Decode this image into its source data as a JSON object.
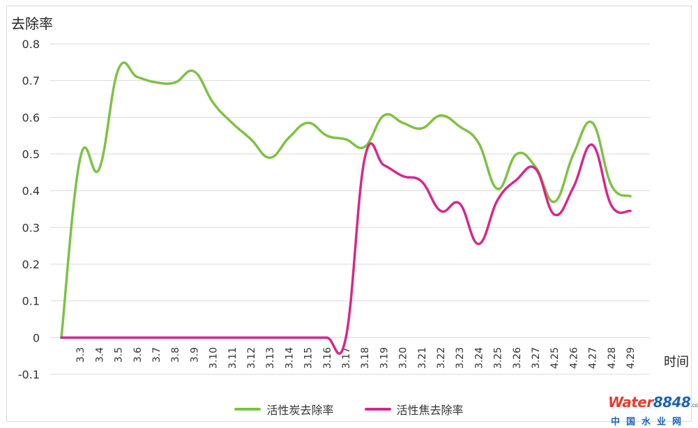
{
  "chart_data": {
    "type": "line",
    "title": "",
    "ylabel": "去除率",
    "xlabel": "时间",
    "ylim": [
      -0.1,
      0.8
    ],
    "yticks": [
      "0.8",
      "0.7",
      "0.6",
      "0.5",
      "0.4",
      "0.3",
      "0.2",
      "0.1",
      "0",
      "-0.1"
    ],
    "categories": [
      "",
      "3.3",
      "3.4",
      "3.5",
      "3.6",
      "3.7",
      "3.8",
      "3.9",
      "3.10",
      "3.11",
      "3.12",
      "3.13",
      "3.14",
      "3.15",
      "3.16",
      "3.17",
      "3.18",
      "3.19",
      "3.20",
      "3.21",
      "3.22",
      "3.23",
      "3.24",
      "3.25",
      "3.26",
      "3.27",
      "4.25",
      "4.26",
      "4.27",
      "4.28",
      "4.29"
    ],
    "grid": true,
    "legend_position": "bottom",
    "series": [
      {
        "name": "活性炭去除率",
        "color": "#7dc242",
        "values": [
          0,
          0.49,
          0.46,
          0.73,
          0.71,
          0.695,
          0.695,
          0.725,
          0.64,
          0.585,
          0.54,
          0.49,
          0.545,
          0.585,
          0.55,
          0.54,
          0.52,
          0.605,
          0.585,
          0.57,
          0.605,
          0.575,
          0.53,
          0.405,
          0.5,
          0.465,
          0.37,
          0.5,
          0.585,
          0.415,
          0.385
        ]
      },
      {
        "name": "活性焦去除率",
        "color": "#d6288a",
        "values": [
          0,
          0,
          0,
          0,
          0,
          0,
          0,
          0,
          0,
          0,
          0,
          0,
          0,
          0,
          0,
          0,
          0.49,
          0.47,
          0.44,
          0.425,
          0.345,
          0.365,
          0.255,
          0.375,
          0.43,
          0.46,
          0.335,
          0.41,
          0.525,
          0.36,
          0.345
        ]
      }
    ]
  },
  "watermark": {
    "brand_word": "Water",
    "brand_number": "8848",
    "brand_suffix": ".com",
    "brand_cn": "中国水业网"
  }
}
